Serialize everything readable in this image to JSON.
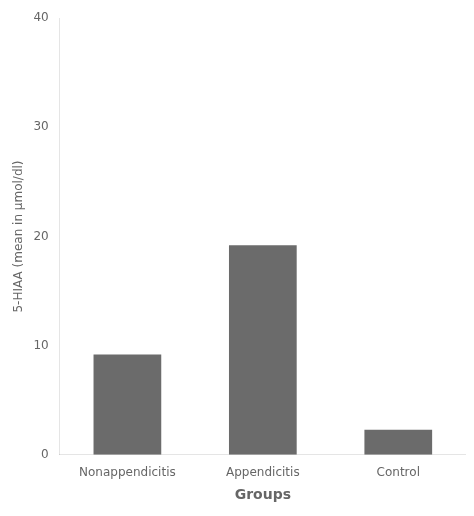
{
  "chart_data": {
    "type": "bar",
    "categories": [
      "Nonappendicitis",
      "Appendicitis",
      "Control"
    ],
    "values": [
      9.2,
      19.2,
      2.3
    ],
    "color": "#6b6b6b",
    "xlabel": "Groups",
    "ylabel": "5-HIAA (mean in μmol/dl)",
    "ylim": [
      0,
      40
    ],
    "yticks": [
      0,
      10,
      20,
      30,
      40
    ],
    "grid": false
  }
}
